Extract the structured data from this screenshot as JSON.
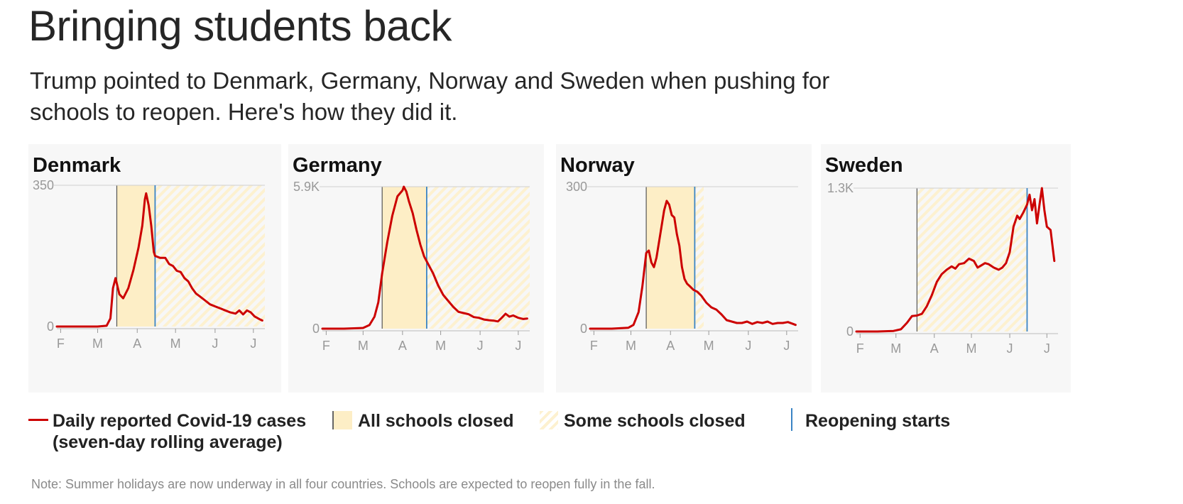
{
  "title": "Bringing students back",
  "subtitle": "Trump pointed to Denmark, Germany, Norway and Sweden when pushing for schools to reopen. Here's how they did it.",
  "colors": {
    "cases": "#cc0000",
    "all_closed": "#fdeec6",
    "some_closed_hatch": "#fdf1d0",
    "reopening": "#3a84c4",
    "panel_bg": "#f7f7f7"
  },
  "legend": {
    "cases_line1": "Daily reported Covid-19 cases",
    "cases_line2": "(seven-day rolling average)",
    "all_closed": "All schools closed",
    "some_closed": "Some schools closed",
    "reopening": "Reopening starts"
  },
  "note": "Note: Summer holidays are now underway in all four countries. Schools are expected to reopen fully in the fall.",
  "chart_data": [
    {
      "type": "line",
      "title": "Denmark",
      "x_unit": "2020 date",
      "xlim": [
        "2020-01-29",
        "2020-07-10"
      ],
      "ylim": [
        0,
        350
      ],
      "ytick_labels": [
        "0",
        "350"
      ],
      "xticks": [
        "2020-02-01",
        "2020-03-01",
        "2020-04-01",
        "2020-05-01",
        "2020-06-01",
        "2020-07-01"
      ],
      "xtick_labels": [
        "F",
        "M",
        "A",
        "M",
        "J",
        "J"
      ],
      "all_schools_closed": [
        "2020-03-16",
        "2020-04-15"
      ],
      "some_schools_closed": [
        "2020-04-15",
        "2020-07-10"
      ],
      "reopening_starts": "2020-04-15",
      "series": [
        {
          "values": [
            [
              "2020-01-29",
              0
            ],
            [
              "2020-02-15",
              0
            ],
            [
              "2020-03-01",
              0
            ],
            [
              "2020-03-08",
              2
            ],
            [
              "2020-03-11",
              20
            ],
            [
              "2020-03-13",
              95
            ],
            [
              "2020-03-15",
              120
            ],
            [
              "2020-03-18",
              80
            ],
            [
              "2020-03-21",
              70
            ],
            [
              "2020-03-25",
              95
            ],
            [
              "2020-03-29",
              140
            ],
            [
              "2020-04-02",
              195
            ],
            [
              "2020-04-05",
              250
            ],
            [
              "2020-04-07",
              315
            ],
            [
              "2020-04-08",
              330
            ],
            [
              "2020-04-10",
              300
            ],
            [
              "2020-04-12",
              250
            ],
            [
              "2020-04-14",
              185
            ],
            [
              "2020-04-15",
              175
            ],
            [
              "2020-04-19",
              170
            ],
            [
              "2020-04-23",
              170
            ],
            [
              "2020-04-26",
              155
            ],
            [
              "2020-04-29",
              150
            ],
            [
              "2020-05-02",
              138
            ],
            [
              "2020-05-05",
              135
            ],
            [
              "2020-05-08",
              120
            ],
            [
              "2020-05-11",
              112
            ],
            [
              "2020-05-14",
              95
            ],
            [
              "2020-05-17",
              82
            ],
            [
              "2020-05-20",
              75
            ],
            [
              "2020-05-24",
              65
            ],
            [
              "2020-05-28",
              55
            ],
            [
              "2020-06-01",
              50
            ],
            [
              "2020-06-05",
              45
            ],
            [
              "2020-06-09",
              40
            ],
            [
              "2020-06-13",
              35
            ],
            [
              "2020-06-17",
              32
            ],
            [
              "2020-06-20",
              40
            ],
            [
              "2020-06-23",
              30
            ],
            [
              "2020-06-26",
              40
            ],
            [
              "2020-06-29",
              35
            ],
            [
              "2020-07-02",
              25
            ],
            [
              "2020-07-06",
              18
            ],
            [
              "2020-07-08",
              15
            ]
          ]
        }
      ]
    },
    {
      "type": "line",
      "title": "Germany",
      "x_unit": "2020 date",
      "xlim": [
        "2020-01-29",
        "2020-07-10"
      ],
      "ylim": [
        0,
        5900
      ],
      "ytick_labels": [
        "0",
        "5.9K"
      ],
      "xticks": [
        "2020-02-01",
        "2020-03-01",
        "2020-04-01",
        "2020-05-01",
        "2020-06-01",
        "2020-07-01"
      ],
      "xtick_labels": [
        "F",
        "M",
        "A",
        "M",
        "J",
        "J"
      ],
      "all_schools_closed": [
        "2020-03-16",
        "2020-04-20"
      ],
      "some_schools_closed": [
        "2020-04-20",
        "2020-07-10"
      ],
      "reopening_starts": "2020-04-20",
      "series": [
        {
          "values": [
            [
              "2020-01-29",
              0
            ],
            [
              "2020-02-15",
              0
            ],
            [
              "2020-03-01",
              30
            ],
            [
              "2020-03-06",
              150
            ],
            [
              "2020-03-10",
              500
            ],
            [
              "2020-03-13",
              1100
            ],
            [
              "2020-03-16",
              2300
            ],
            [
              "2020-03-20",
              3600
            ],
            [
              "2020-03-24",
              4700
            ],
            [
              "2020-03-28",
              5500
            ],
            [
              "2020-04-01",
              5750
            ],
            [
              "2020-04-02",
              5900
            ],
            [
              "2020-04-04",
              5700
            ],
            [
              "2020-04-06",
              5300
            ],
            [
              "2020-04-09",
              4800
            ],
            [
              "2020-04-12",
              4100
            ],
            [
              "2020-04-15",
              3500
            ],
            [
              "2020-04-18",
              3000
            ],
            [
              "2020-04-21",
              2700
            ],
            [
              "2020-04-25",
              2300
            ],
            [
              "2020-04-29",
              1800
            ],
            [
              "2020-05-03",
              1400
            ],
            [
              "2020-05-07",
              1150
            ],
            [
              "2020-05-11",
              900
            ],
            [
              "2020-05-15",
              700
            ],
            [
              "2020-05-19",
              650
            ],
            [
              "2020-05-23",
              600
            ],
            [
              "2020-05-27",
              480
            ],
            [
              "2020-05-31",
              450
            ],
            [
              "2020-06-04",
              380
            ],
            [
              "2020-06-08",
              350
            ],
            [
              "2020-06-12",
              330
            ],
            [
              "2020-06-15",
              300
            ],
            [
              "2020-06-18",
              450
            ],
            [
              "2020-06-21",
              620
            ],
            [
              "2020-06-24",
              500
            ],
            [
              "2020-06-27",
              550
            ],
            [
              "2020-07-01",
              450
            ],
            [
              "2020-07-05",
              400
            ],
            [
              "2020-07-08",
              420
            ]
          ]
        }
      ]
    },
    {
      "type": "line",
      "title": "Norway",
      "x_unit": "2020 date",
      "xlim": [
        "2020-01-29",
        "2020-07-10"
      ],
      "ylim": [
        0,
        300
      ],
      "ytick_labels": [
        "0",
        "300"
      ],
      "xticks": [
        "2020-02-01",
        "2020-03-01",
        "2020-04-01",
        "2020-05-01",
        "2020-06-01",
        "2020-07-01"
      ],
      "xtick_labels": [
        "F",
        "M",
        "A",
        "M",
        "J",
        "J"
      ],
      "all_schools_closed": [
        "2020-03-13",
        "2020-04-20"
      ],
      "some_schools_closed": [
        "2020-04-20",
        "2020-04-27"
      ],
      "reopening_starts": "2020-04-20",
      "series": [
        {
          "values": [
            [
              "2020-01-29",
              0
            ],
            [
              "2020-02-15",
              0
            ],
            [
              "2020-02-28",
              2
            ],
            [
              "2020-03-03",
              8
            ],
            [
              "2020-03-07",
              35
            ],
            [
              "2020-03-10",
              90
            ],
            [
              "2020-03-13",
              160
            ],
            [
              "2020-03-15",
              165
            ],
            [
              "2020-03-17",
              140
            ],
            [
              "2020-03-19",
              130
            ],
            [
              "2020-03-21",
              150
            ],
            [
              "2020-03-24",
              200
            ],
            [
              "2020-03-27",
              250
            ],
            [
              "2020-03-29",
              270
            ],
            [
              "2020-03-31",
              262
            ],
            [
              "2020-04-02",
              240
            ],
            [
              "2020-04-04",
              235
            ],
            [
              "2020-04-06",
              200
            ],
            [
              "2020-04-08",
              175
            ],
            [
              "2020-04-10",
              130
            ],
            [
              "2020-04-12",
              105
            ],
            [
              "2020-04-14",
              95
            ],
            [
              "2020-04-16",
              90
            ],
            [
              "2020-04-19",
              82
            ],
            [
              "2020-04-22",
              78
            ],
            [
              "2020-04-25",
              70
            ],
            [
              "2020-04-29",
              55
            ],
            [
              "2020-05-03",
              45
            ],
            [
              "2020-05-07",
              40
            ],
            [
              "2020-05-11",
              30
            ],
            [
              "2020-05-15",
              18
            ],
            [
              "2020-05-19",
              15
            ],
            [
              "2020-05-23",
              12
            ],
            [
              "2020-05-27",
              12
            ],
            [
              "2020-05-31",
              15
            ],
            [
              "2020-06-04",
              10
            ],
            [
              "2020-06-08",
              14
            ],
            [
              "2020-06-12",
              12
            ],
            [
              "2020-06-16",
              15
            ],
            [
              "2020-06-20",
              10
            ],
            [
              "2020-06-24",
              12
            ],
            [
              "2020-06-28",
              12
            ],
            [
              "2020-07-02",
              14
            ],
            [
              "2020-07-06",
              10
            ],
            [
              "2020-07-08",
              8
            ]
          ]
        }
      ]
    },
    {
      "type": "line",
      "title": "Sweden",
      "x_unit": "2020 date",
      "xlim": [
        "2020-01-29",
        "2020-07-10"
      ],
      "ylim": [
        0,
        1300
      ],
      "ytick_labels": [
        "0",
        "1.3K"
      ],
      "xticks": [
        "2020-02-01",
        "2020-03-01",
        "2020-04-01",
        "2020-05-01",
        "2020-06-01",
        "2020-07-01"
      ],
      "xtick_labels": [
        "F",
        "M",
        "A",
        "M",
        "J",
        "J"
      ],
      "all_schools_closed": null,
      "some_schools_closed": [
        "2020-03-18",
        "2020-06-15"
      ],
      "reopening_starts": "2020-06-15",
      "series": [
        {
          "values": [
            [
              "2020-01-29",
              0
            ],
            [
              "2020-02-15",
              0
            ],
            [
              "2020-02-28",
              5
            ],
            [
              "2020-03-05",
              20
            ],
            [
              "2020-03-10",
              80
            ],
            [
              "2020-03-14",
              140
            ],
            [
              "2020-03-18",
              145
            ],
            [
              "2020-03-22",
              160
            ],
            [
              "2020-03-26",
              230
            ],
            [
              "2020-03-30",
              330
            ],
            [
              "2020-04-03",
              450
            ],
            [
              "2020-04-07",
              520
            ],
            [
              "2020-04-11",
              560
            ],
            [
              "2020-04-15",
              590
            ],
            [
              "2020-04-18",
              570
            ],
            [
              "2020-04-21",
              610
            ],
            [
              "2020-04-25",
              620
            ],
            [
              "2020-04-29",
              660
            ],
            [
              "2020-05-03",
              640
            ],
            [
              "2020-05-06",
              580
            ],
            [
              "2020-05-09",
              600
            ],
            [
              "2020-05-12",
              620
            ],
            [
              "2020-05-15",
              610
            ],
            [
              "2020-05-19",
              580
            ],
            [
              "2020-05-23",
              560
            ],
            [
              "2020-05-26",
              580
            ],
            [
              "2020-05-29",
              620
            ],
            [
              "2020-06-01",
              720
            ],
            [
              "2020-06-04",
              950
            ],
            [
              "2020-06-07",
              1050
            ],
            [
              "2020-06-09",
              1020
            ],
            [
              "2020-06-12",
              1080
            ],
            [
              "2020-06-15",
              1150
            ],
            [
              "2020-06-17",
              1240
            ],
            [
              "2020-06-19",
              1100
            ],
            [
              "2020-06-21",
              1200
            ],
            [
              "2020-06-23",
              980
            ],
            [
              "2020-06-25",
              1150
            ],
            [
              "2020-06-27",
              1300
            ],
            [
              "2020-06-29",
              1100
            ],
            [
              "2020-07-01",
              950
            ],
            [
              "2020-07-04",
              920
            ],
            [
              "2020-07-07",
              640
            ]
          ]
        }
      ]
    }
  ]
}
